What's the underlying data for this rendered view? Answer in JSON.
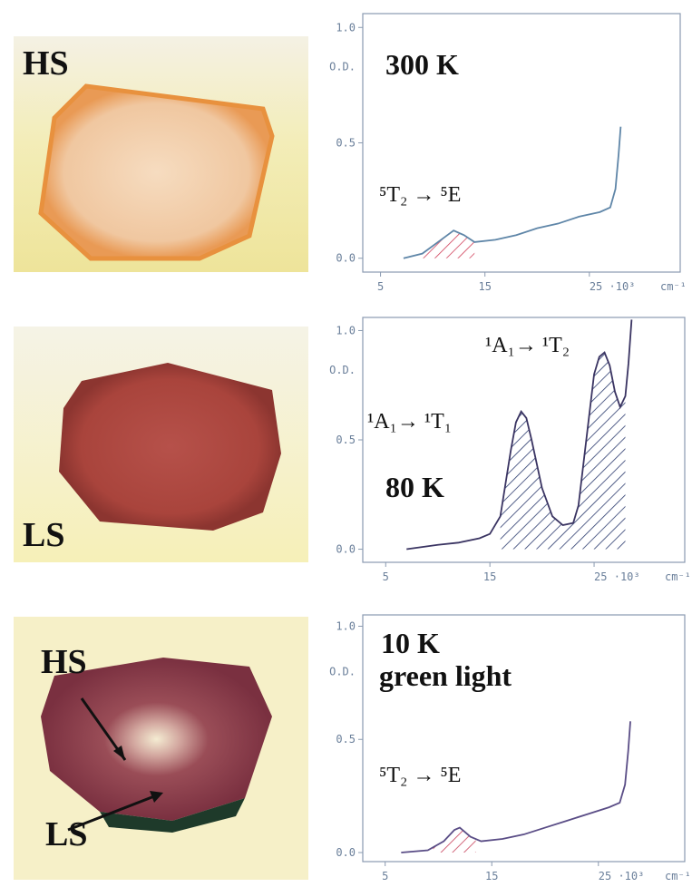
{
  "photos": [
    {
      "labels": [
        "HS"
      ]
    },
    {
      "labels": [
        "LS"
      ]
    },
    {
      "labels": [
        "HS",
        "LS"
      ]
    }
  ],
  "chart_data": [
    {
      "type": "line",
      "title": "300 K",
      "annotations": [
        "⁵T₂ → ⁵E"
      ],
      "ylabel": "O.D.",
      "xlabel": "cm⁻¹",
      "x": [
        7.2,
        9,
        10.5,
        12,
        13,
        14,
        16,
        18,
        20,
        22,
        24,
        26,
        27,
        27.5,
        27.8,
        28
      ],
      "values": [
        0.0,
        0.02,
        0.07,
        0.12,
        0.1,
        0.07,
        0.08,
        0.1,
        0.13,
        0.15,
        0.18,
        0.2,
        0.22,
        0.3,
        0.45,
        0.57
      ],
      "color": "#5f86a8",
      "hatch_color": "#d0405a",
      "shaded": [
        9,
        14
      ],
      "xlim": [
        3.3,
        33.7
      ],
      "ylim": [
        -0.06,
        1.06
      ],
      "xticks": [
        5,
        15,
        {
          "value": 25,
          "label": "25 ·10³"
        }
      ],
      "yticks": [
        {
          "value": 0,
          "label": "0.0"
        },
        0.5,
        {
          "value": 1,
          "label": "1.0"
        }
      ]
    },
    {
      "type": "line",
      "title": "80 K",
      "annotations": [
        "¹A₁→ ¹T₁",
        "¹A₁→ ¹T₂"
      ],
      "ylabel": "O.D.",
      "xlabel": "cm⁻¹",
      "x": [
        7,
        10,
        12,
        14,
        15,
        16,
        16.5,
        17,
        17.5,
        18,
        18.5,
        19,
        20,
        21,
        22,
        23,
        23.5,
        24,
        24.5,
        25,
        25.5,
        26,
        26.5,
        27,
        27.5,
        28,
        28.3,
        28.6
      ],
      "values": [
        0.0,
        0.02,
        0.03,
        0.05,
        0.07,
        0.15,
        0.3,
        0.45,
        0.58,
        0.63,
        0.6,
        0.5,
        0.28,
        0.15,
        0.11,
        0.12,
        0.2,
        0.4,
        0.6,
        0.8,
        0.88,
        0.9,
        0.84,
        0.72,
        0.65,
        0.7,
        0.85,
        1.05
      ],
      "color": "#3a3462",
      "hatch_color": "#2b3a6e",
      "shaded": [
        16,
        28
      ],
      "xlim": [
        2.8,
        33.7
      ],
      "ylim": [
        -0.06,
        1.06
      ],
      "xticks": [
        5,
        15,
        {
          "value": 25,
          "label": "25 ·10³"
        }
      ],
      "yticks": [
        {
          "value": 0,
          "label": "0.0"
        },
        0.5,
        {
          "value": 1,
          "label": "1.0"
        }
      ]
    },
    {
      "type": "line",
      "title": "10 K",
      "subtitle": "green light",
      "annotations": [
        "⁵T₂ → ⁵E"
      ],
      "ylabel": "O.D.",
      "xlabel": "cm⁻¹",
      "x": [
        6.5,
        9,
        10.5,
        11.5,
        12,
        13,
        14,
        16,
        18,
        20,
        22,
        24,
        26,
        27,
        27.5,
        27.8,
        28
      ],
      "values": [
        0.0,
        0.01,
        0.05,
        0.1,
        0.11,
        0.07,
        0.05,
        0.06,
        0.08,
        0.11,
        0.14,
        0.17,
        0.2,
        0.22,
        0.3,
        0.45,
        0.58
      ],
      "color": "#5a4d86",
      "hatch_color": "#c8405a",
      "shaded": [
        9.5,
        13.5
      ],
      "xlim": [
        2.9,
        33.1
      ],
      "ylim": [
        -0.04,
        1.05
      ],
      "xticks": [
        5,
        15,
        {
          "value": 25,
          "label": "25 ·10³"
        }
      ],
      "yticks": [
        {
          "value": 0,
          "label": "0.0"
        },
        0.5,
        {
          "value": 1,
          "label": "1.0"
        }
      ]
    }
  ]
}
